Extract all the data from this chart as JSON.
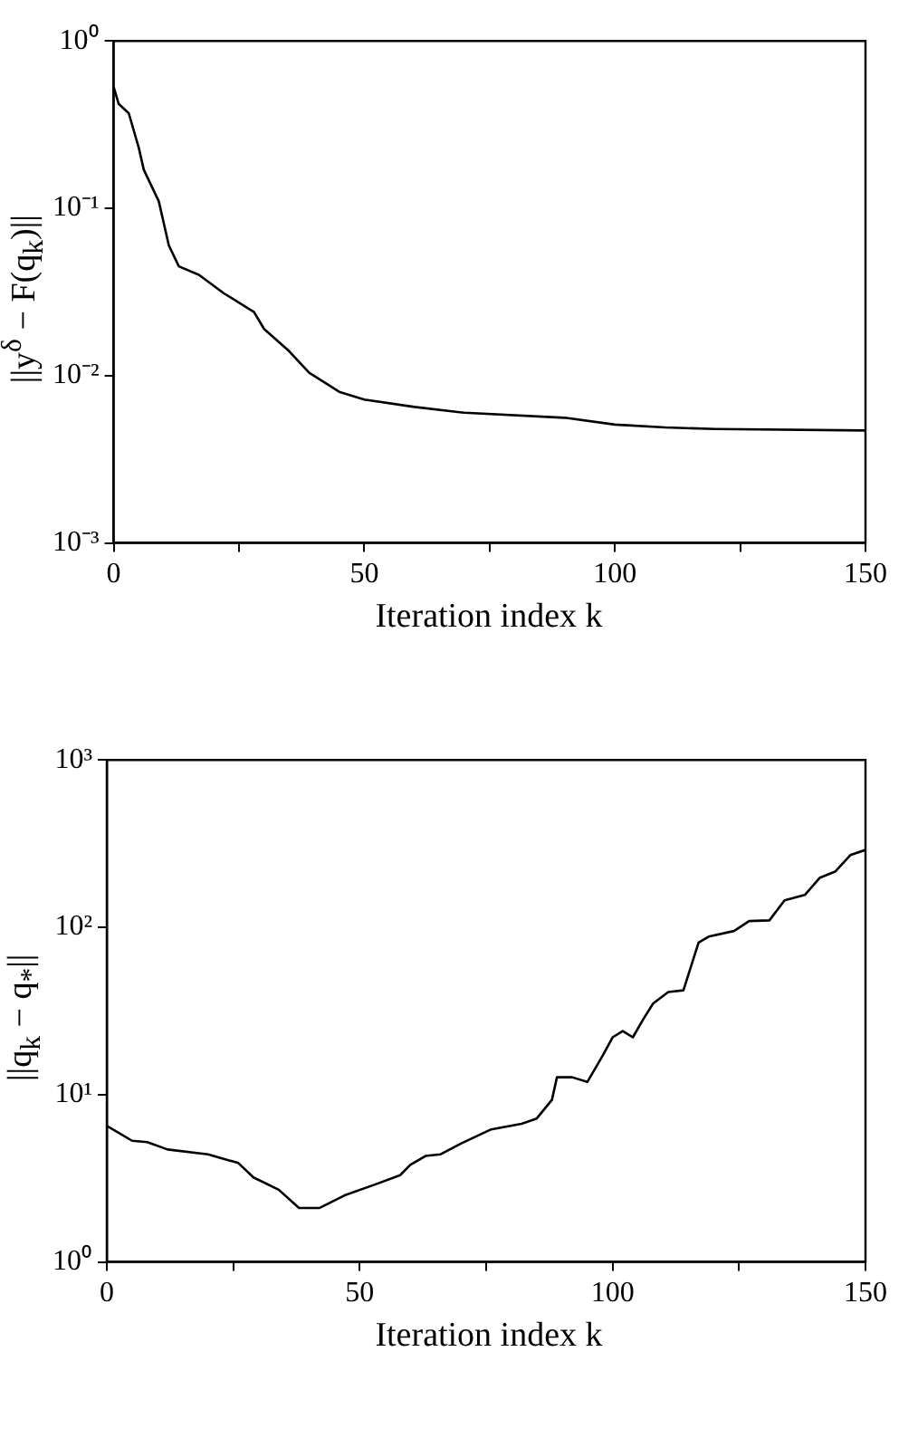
{
  "chart_data": [
    {
      "type": "line",
      "xlabel": "Iteration index k",
      "ylabel": "||y$^{δ}$ − F(q$_{k}$)||",
      "log": "y",
      "grid": false,
      "legend": false,
      "marker": "none",
      "line_style": "solid",
      "xlim": [
        0,
        150
      ],
      "xticks": [
        0,
        {
          "value": 25,
          "label": null
        },
        50,
        {
          "value": 75,
          "label": null
        },
        100,
        {
          "value": 125,
          "label": null
        },
        150
      ],
      "ylim": [
        0.001,
        1
      ],
      "yticks": [
        {
          "value": 0.001,
          "label": "10⁻³"
        },
        {
          "value": 0.01,
          "label": "10⁻²"
        },
        {
          "value": 0.1,
          "label": "10⁻¹"
        },
        {
          "value": 1,
          "label": "10⁰"
        }
      ],
      "series": [
        {
          "color": "#000000",
          "x": [
            0,
            1,
            3,
            5,
            6,
            9,
            11,
            13,
            17,
            22,
            28,
            30,
            35,
            39,
            45,
            50,
            60,
            70,
            90,
            100,
            110,
            120,
            150
          ],
          "values": [
            0.53,
            0.42,
            0.37,
            0.23,
            0.17,
            0.11,
            0.06,
            0.045,
            0.04,
            0.031,
            0.024,
            0.019,
            0.014,
            0.0104,
            0.008,
            0.0072,
            0.0065,
            0.006,
            0.0056,
            0.0051,
            0.0049,
            0.0048,
            0.0047
          ]
        }
      ]
    },
    {
      "type": "line",
      "xlabel": "Iteration index k",
      "ylabel": "||q$_{k}$ − q$_{*}$||",
      "log": "y",
      "grid": false,
      "legend": false,
      "marker": "none",
      "line_style": "solid",
      "xlim": [
        0,
        150
      ],
      "xticks": [
        0,
        {
          "value": 25,
          "label": null
        },
        50,
        {
          "value": 75,
          "label": null
        },
        100,
        {
          "value": 125,
          "label": null
        },
        150
      ],
      "ylim": [
        1,
        1000
      ],
      "yticks": [
        {
          "value": 1,
          "label": "10⁰"
        },
        {
          "value": 10,
          "label": "10¹"
        },
        {
          "value": 100,
          "label": "10²"
        },
        {
          "value": 1000,
          "label": "10³"
        }
      ],
      "series": [
        {
          "color": "#000000",
          "x": [
            0,
            2,
            5,
            8,
            12,
            20,
            26,
            29,
            34,
            38,
            42,
            47,
            53,
            58,
            60,
            63,
            66,
            70,
            76,
            82,
            85,
            88,
            89,
            92,
            95,
            98,
            100,
            102,
            104,
            106,
            108,
            111,
            114,
            117,
            119,
            124,
            127,
            131,
            134,
            138,
            141,
            144,
            147,
            150
          ],
          "values": [
            6.5,
            6.0,
            5.3,
            5.2,
            4.7,
            4.4,
            3.9,
            3.2,
            2.7,
            2.1,
            2.1,
            2.5,
            2.9,
            3.3,
            3.8,
            4.3,
            4.4,
            5.1,
            6.2,
            6.7,
            7.2,
            9.3,
            12.7,
            12.7,
            11.9,
            17,
            22,
            24,
            22,
            28,
            35,
            41,
            42,
            81,
            88,
            95,
            109,
            110,
            145,
            156,
            198,
            215,
            270,
            290
          ]
        }
      ]
    }
  ]
}
